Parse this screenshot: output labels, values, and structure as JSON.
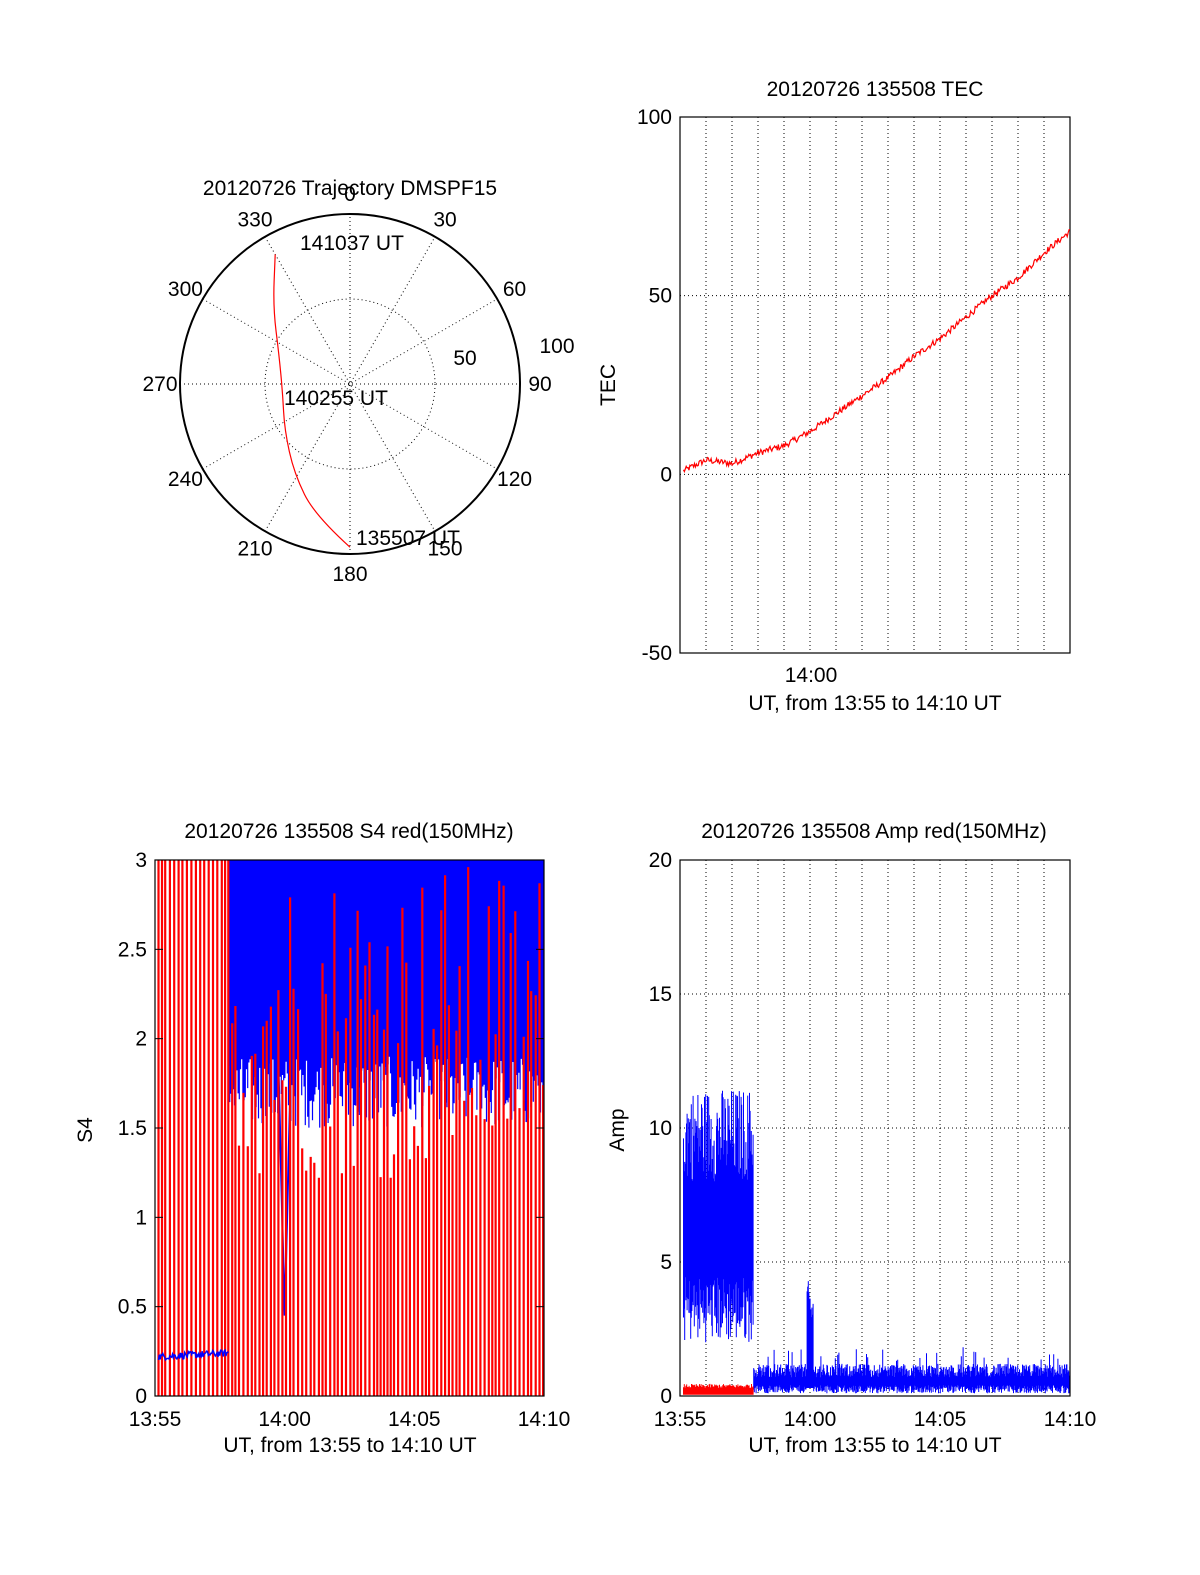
{
  "chart_data": [
    {
      "type": "polar",
      "title": "20120726 Trajectory DMSPF15",
      "angle_labels": [
        "0",
        "30",
        "60",
        "90",
        "120",
        "150",
        "180",
        "210",
        "240",
        "270",
        "300",
        "330"
      ],
      "radius_labels": [
        "50",
        "100"
      ],
      "rlim": [
        0,
        100
      ],
      "grid": true,
      "series": [
        {
          "color": "#ff0000",
          "points": [
            {
              "az": 180,
              "r": 96
            },
            {
              "az": 195,
              "r": 80
            },
            {
              "az": 212,
              "r": 62
            },
            {
              "az": 235,
              "r": 47
            },
            {
              "az": 262,
              "r": 40
            },
            {
              "az": 292,
              "r": 45
            },
            {
              "az": 315,
              "r": 64
            },
            {
              "az": 330,
              "r": 88
            }
          ]
        }
      ],
      "annotations": [
        "141037 UT",
        "140255 UT",
        "135507 UT"
      ]
    },
    {
      "type": "line",
      "title": "20120726 135508 TEC",
      "xlabel": "UT, from 13:55 to 14:10 UT",
      "ylabel": "TEC",
      "x_ticks": [
        "14:00"
      ],
      "y_ticks": [
        "100",
        "50",
        "0",
        "-50"
      ],
      "xlim": [
        "13:55",
        "14:10"
      ],
      "ylim": [
        -50,
        100
      ],
      "grid": true,
      "series": [
        {
          "color": "#ff0000",
          "x": [
            "13:55:08",
            "13:56:00",
            "13:57:00",
            "13:58:00",
            "13:59:00",
            "14:00:00",
            "14:01:00",
            "14:02:00",
            "14:03:00",
            "14:04:00",
            "14:05:00",
            "14:06:00",
            "14:07:00",
            "14:08:00",
            "14:09:00",
            "14:10:00"
          ],
          "y": [
            1,
            4,
            3,
            6,
            8,
            12,
            17,
            22,
            27,
            33,
            38,
            44,
            50,
            55,
            62,
            68
          ]
        }
      ]
    },
    {
      "type": "line",
      "title": "20120726 135508 S4 red(150MHz)",
      "xlabel": "UT, from 13:55 to 14:10 UT",
      "ylabel": "S4",
      "x_ticks": [
        "13:55",
        "14:00",
        "14:05",
        "14:10"
      ],
      "y_ticks": [
        "3",
        "2.5",
        "2",
        "1.5",
        "1",
        "0.5",
        "0"
      ],
      "xlim": [
        "13:55",
        "14:10"
      ],
      "ylim": [
        0,
        3
      ],
      "series": [
        {
          "color": "#0000ff",
          "x": [
            "13:55:08",
            "13:57:50"
          ],
          "y": [
            0.22,
            0.24
          ],
          "note_range_after_1358": [
            1.5,
            3
          ]
        },
        {
          "color": "#ff0000",
          "x": [
            "13:55:08",
            "14:10:00"
          ],
          "y": [
            0,
            3
          ]
        }
      ]
    },
    {
      "type": "line",
      "title": "20120726 135508 Amp red(150MHz)",
      "xlabel": "UT, from 13:55 to 14:10 UT",
      "ylabel": "Amp",
      "x_ticks": [
        "13:55",
        "14:00",
        "14:05",
        "14:10"
      ],
      "y_ticks": [
        "20",
        "15",
        "10",
        "5",
        "0"
      ],
      "xlim": [
        "13:55",
        "14:10"
      ],
      "ylim": [
        0,
        20
      ],
      "grid": true,
      "series": [
        {
          "color": "#0000ff",
          "x": [
            "13:55:08",
            "13:57:50",
            "13:57:51",
            "13:59:50",
            "14:00:00",
            "14:10:00"
          ],
          "y": [
            6.5,
            6.5,
            0.6,
            0.6,
            3.0,
            0.6
          ]
        },
        {
          "color": "#ff0000",
          "x": [
            "13:55:08",
            "13:57:50"
          ],
          "y": [
            0.2,
            0.2
          ]
        }
      ]
    }
  ]
}
